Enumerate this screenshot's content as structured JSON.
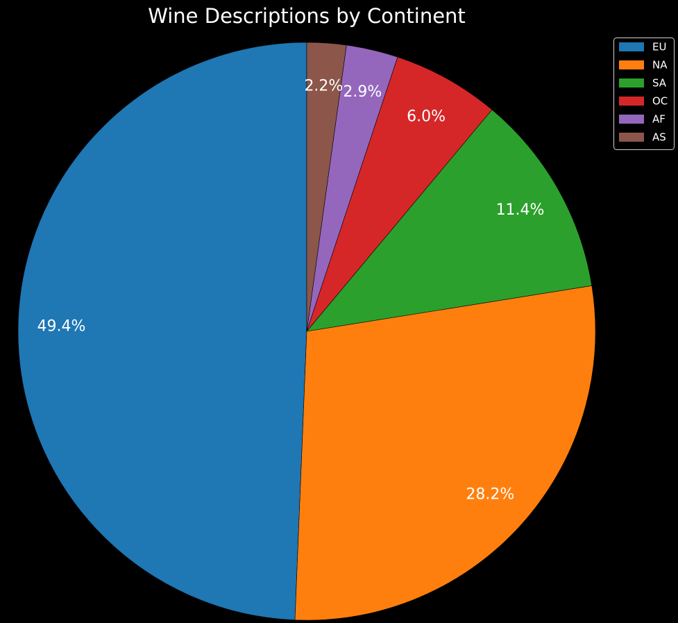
{
  "chart_data": {
    "type": "pie",
    "title": "Wine Descriptions by Continent",
    "categories": [
      "EU",
      "NA",
      "SA",
      "OC",
      "AF",
      "AS"
    ],
    "values": [
      49.4,
      28.2,
      11.4,
      6.0,
      2.9,
      2.2
    ],
    "labels": [
      "49.4%",
      "28.2%",
      "11.4%",
      "6.0%",
      "2.9%",
      "2.2%"
    ],
    "colors": [
      "#1f77b4",
      "#ff7f0e",
      "#2ca02c",
      "#d62728",
      "#9467bd",
      "#8c564b"
    ],
    "start_angle_deg": 90,
    "direction": "counterclockwise",
    "legend": {
      "placement": "top-right",
      "entries": [
        "EU",
        "NA",
        "SA",
        "OC",
        "AF",
        "AS"
      ]
    },
    "background": "#000000",
    "text_color": "#ffffff"
  }
}
